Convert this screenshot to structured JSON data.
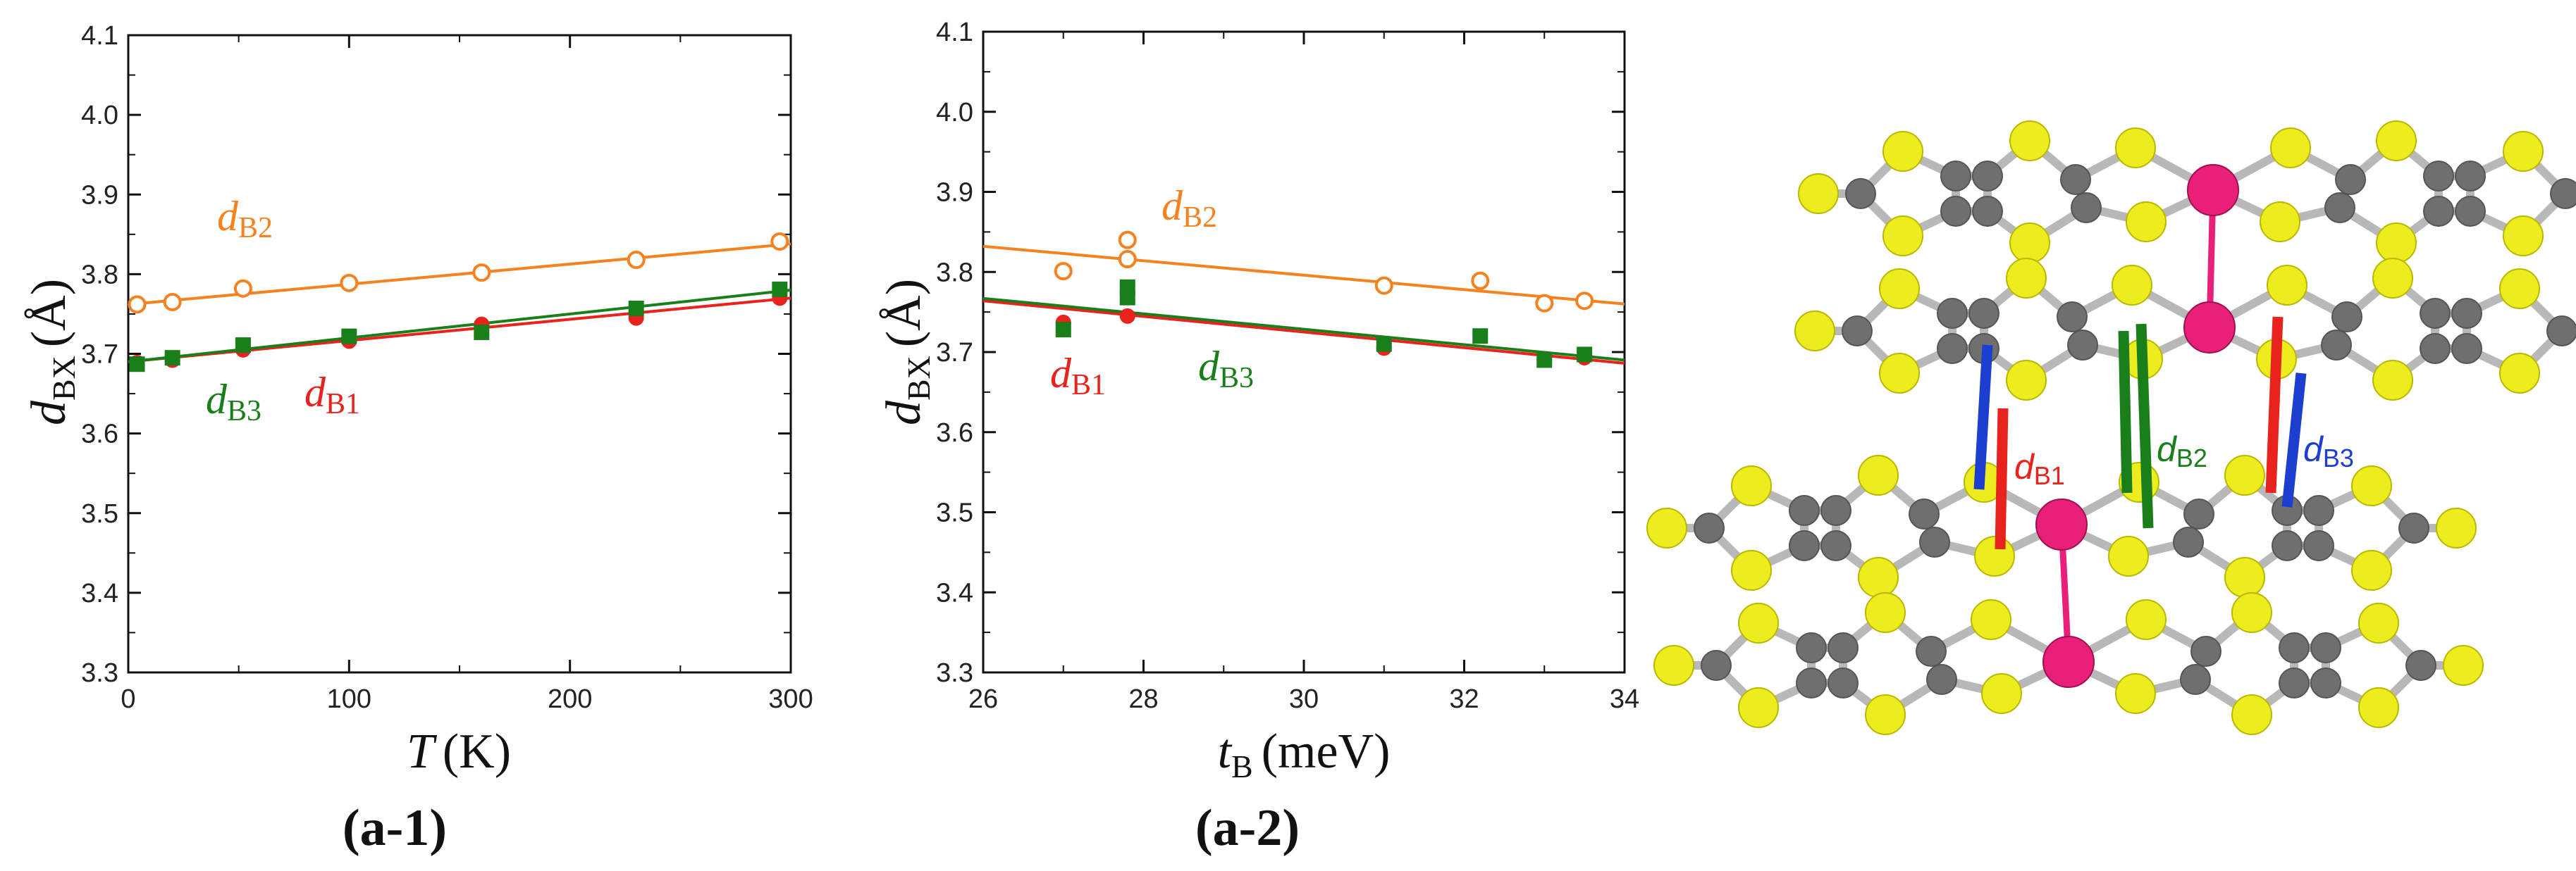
{
  "colors": {
    "B1": "#e8221c",
    "B2": "#f5811f",
    "B3": "#1a7f1a",
    "blue": "#1d3fd0",
    "sulfur": "#ecec1e",
    "carbon": "#6f6f6f",
    "metal": "#e8207a"
  },
  "chart_data": [
    {
      "type": "scatter",
      "panel_label": "(a-1)",
      "xlabel": "T (K)",
      "xlabel_main": "T",
      "xlabel_unit": "(K)",
      "ylabel": "d_BX (Å)",
      "ylabel_main": "d",
      "ylabel_sub": "BX",
      "ylabel_unit": "(Å)",
      "xlim": [
        0,
        300
      ],
      "ylim": [
        3.3,
        4.1
      ],
      "xticks": [
        0,
        100,
        200,
        300
      ],
      "yticks": [
        3.3,
        3.4,
        3.5,
        3.6,
        3.7,
        3.8,
        3.9,
        4.0,
        4.1
      ],
      "ytick_labels": [
        "3.3",
        "3.4",
        "3.5",
        "3.6",
        "3.7",
        "3.8",
        "3.9",
        "4.0",
        "4.1"
      ],
      "series": [
        {
          "name": "dB2",
          "key": "B2",
          "marker": "circle-open",
          "x": [
            4,
            20,
            52,
            100,
            160,
            230,
            295
          ],
          "y": [
            3.762,
            3.765,
            3.782,
            3.789,
            3.802,
            3.818,
            3.841
          ],
          "fit": [
            [
              0,
              3.762
            ],
            [
              300,
              3.838
            ]
          ],
          "label_d": "d",
          "label_sub": "B2"
        },
        {
          "name": "dB1",
          "key": "B1",
          "marker": "circle-filled",
          "x": [
            4,
            20,
            52,
            100,
            160,
            230,
            295
          ],
          "y": [
            3.689,
            3.692,
            3.705,
            3.716,
            3.737,
            3.745,
            3.77
          ],
          "fit": [
            [
              0,
              3.69
            ],
            [
              300,
              3.77
            ]
          ],
          "label_d": "d",
          "label_sub": "B1"
        },
        {
          "name": "dB3",
          "key": "B3",
          "marker": "square-filled",
          "x": [
            4,
            20,
            52,
            100,
            160,
            230,
            295
          ],
          "y": [
            3.687,
            3.695,
            3.711,
            3.722,
            3.727,
            3.757,
            3.781
          ],
          "fit": [
            [
              0,
              3.69
            ],
            [
              300,
              3.78
            ]
          ],
          "label_d": "d",
          "label_sub": "B3"
        }
      ]
    },
    {
      "type": "scatter",
      "panel_label": "(a-2)",
      "xlabel": "t_B (meV)",
      "xlabel_main": "t",
      "xlabel_sub": "B",
      "xlabel_unit": "(meV)",
      "ylabel": "d_BX (Å)",
      "ylabel_main": "d",
      "ylabel_sub": "BX",
      "ylabel_unit": "(Å)",
      "xlim": [
        26,
        34
      ],
      "ylim": [
        3.3,
        4.1
      ],
      "xticks": [
        26,
        28,
        30,
        32,
        34
      ],
      "yticks": [
        3.3,
        3.4,
        3.5,
        3.6,
        3.7,
        3.8,
        3.9,
        4.0,
        4.1
      ],
      "ytick_labels": [
        "3.3",
        "3.4",
        "3.5",
        "3.6",
        "3.7",
        "3.8",
        "3.9",
        "4.0",
        "4.1"
      ],
      "series": [
        {
          "name": "dB2",
          "key": "B2",
          "marker": "circle-open",
          "x": [
            27.0,
            27.8,
            27.8,
            31.0,
            32.2,
            33.0,
            33.5
          ],
          "y": [
            3.801,
            3.84,
            3.816,
            3.783,
            3.789,
            3.761,
            3.764
          ],
          "fit": [
            [
              26,
              3.832
            ],
            [
              34,
              3.76
            ]
          ],
          "label_d": "d",
          "label_sub": "B2"
        },
        {
          "name": "dB1",
          "key": "B1",
          "marker": "circle-filled",
          "x": [
            27.0,
            27.8,
            31.0,
            33.0,
            33.5
          ],
          "y": [
            3.737,
            3.745,
            3.705,
            3.69,
            3.693
          ],
          "fit": [
            [
              26,
              3.764
            ],
            [
              34,
              3.686
            ]
          ],
          "label_d": "d",
          "label_sub": "B1"
        },
        {
          "name": "dB3",
          "key": "B3",
          "marker": "square-filled",
          "x": [
            27.0,
            27.8,
            27.8,
            31.0,
            32.2,
            33.0,
            33.5
          ],
          "y": [
            3.728,
            3.781,
            3.768,
            3.71,
            3.72,
            3.69,
            3.697
          ],
          "fit": [
            [
              26,
              3.767
            ],
            [
              34,
              3.69
            ]
          ],
          "label_d": "d",
          "label_sub": "B3"
        }
      ]
    }
  ],
  "molecule": {
    "labels": [
      {
        "key": "B1",
        "d": "d",
        "sub": "B1"
      },
      {
        "key": "B2",
        "d": "d",
        "sub": "B2"
      },
      {
        "key": "B3",
        "d": "d",
        "sub": "B3"
      }
    ]
  }
}
